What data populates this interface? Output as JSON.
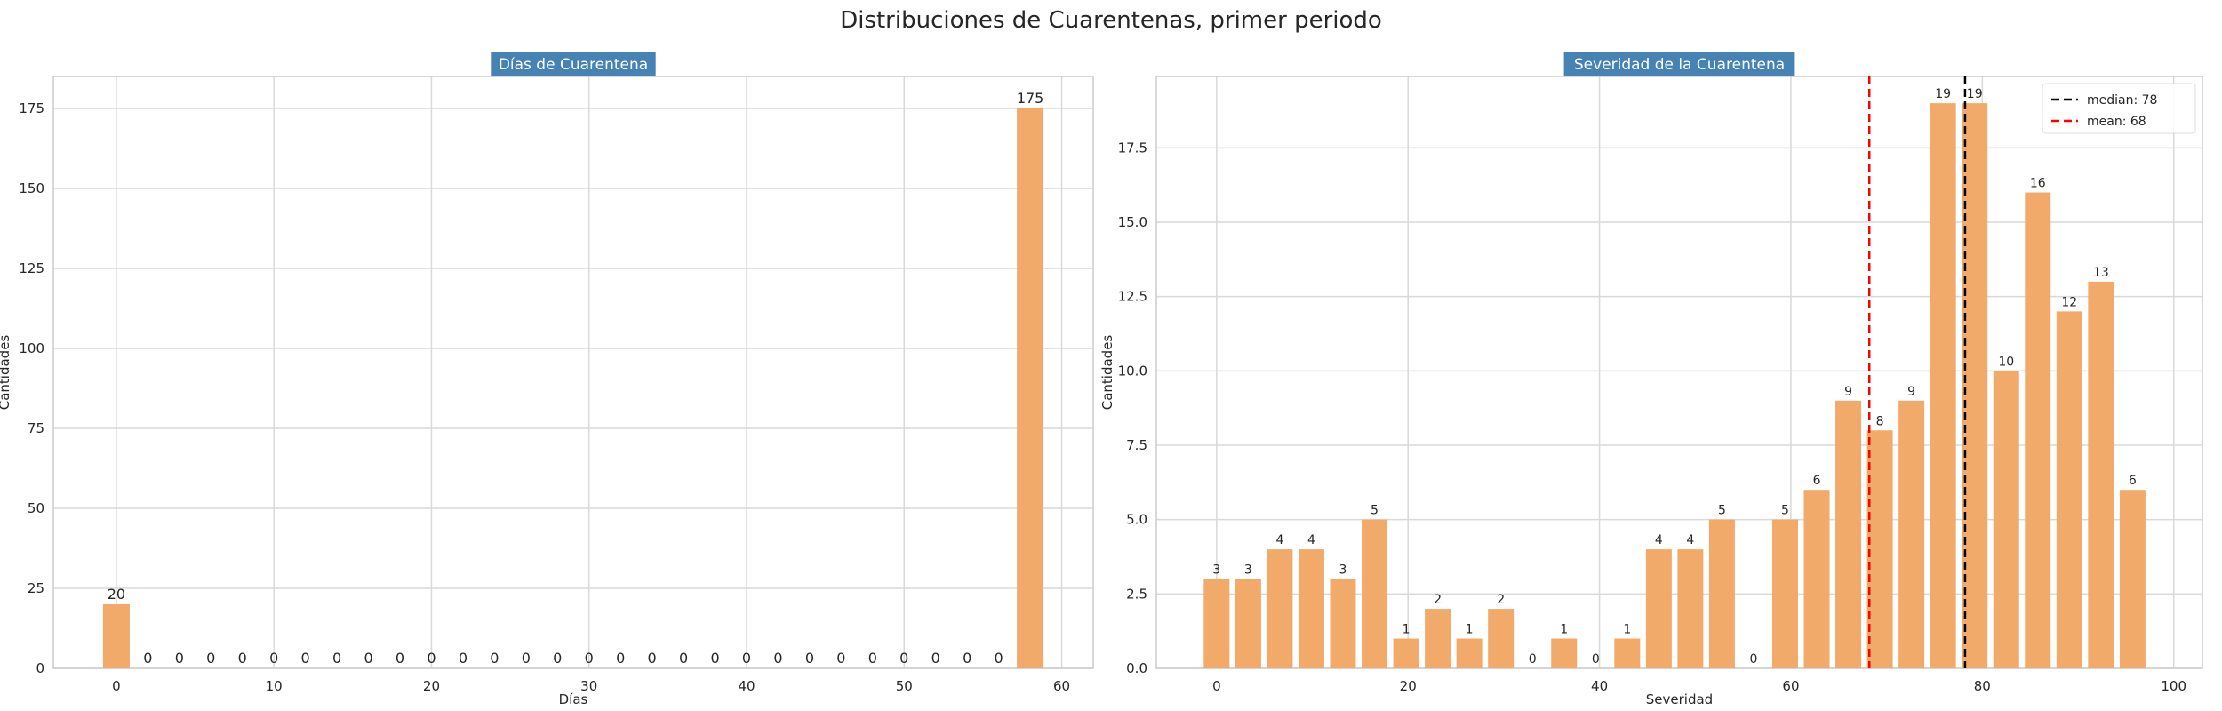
{
  "figure": {
    "title": "Distribuciones de Cuarentenas, primer periodo"
  },
  "colors": {
    "bar": "#f2aa6a",
    "title_box": "#4682b4",
    "grid": "#d9d9d9",
    "spine": "#cccccc",
    "median": "#000000",
    "mean": "#ff0000"
  },
  "chart_data": [
    {
      "type": "bar",
      "title": "Días de Cuarentena",
      "xlabel": "Días",
      "ylabel": "Cantidades",
      "xlim": [
        -4,
        62
      ],
      "ylim": [
        0,
        185
      ],
      "xticks": [
        0,
        10,
        20,
        30,
        40,
        50,
        60
      ],
      "yticks": [
        0,
        25,
        50,
        75,
        100,
        125,
        150,
        175
      ],
      "grid": true,
      "x": [
        0,
        2,
        4,
        6,
        8,
        10,
        12,
        14,
        16,
        18,
        20,
        22,
        24,
        26,
        28,
        30,
        32,
        34,
        36,
        38,
        40,
        42,
        44,
        46,
        48,
        50,
        52,
        54,
        56,
        58
      ],
      "values": [
        20,
        0,
        0,
        0,
        0,
        0,
        0,
        0,
        0,
        0,
        0,
        0,
        0,
        0,
        0,
        0,
        0,
        0,
        0,
        0,
        0,
        0,
        0,
        0,
        0,
        0,
        0,
        0,
        0,
        175
      ],
      "data_labels": [
        "20",
        "0",
        "0",
        "0",
        "0",
        "0",
        "0",
        "0",
        "0",
        "0",
        "0",
        "0",
        "0",
        "0",
        "0",
        "0",
        "0",
        "0",
        "0",
        "0",
        "0",
        "0",
        "0",
        "0",
        "0",
        "0",
        "0",
        "0",
        "0",
        "175"
      ]
    },
    {
      "type": "bar",
      "title": "Severidad de la Cuarentena",
      "xlabel": "Severidad",
      "ylabel": "Cantidades",
      "xlim": [
        -6.3,
        103
      ],
      "ylim": [
        0,
        19.9
      ],
      "xticks": [
        0,
        20,
        40,
        60,
        80,
        100
      ],
      "ytick_labels": [
        "0.0",
        "2.5",
        "5.0",
        "7.5",
        "10.0",
        "12.5",
        "15.0",
        "17.5"
      ],
      "grid": true,
      "x": [
        0,
        3.3,
        6.6,
        9.9,
        13.2,
        16.5,
        19.8,
        23.1,
        26.4,
        29.7,
        33,
        36.3,
        39.6,
        42.9,
        46.2,
        49.5,
        52.8,
        56.1,
        59.4,
        62.7,
        66,
        69.3,
        72.6,
        75.9,
        79.2,
        82.5,
        85.8,
        89.1,
        92.4,
        95.7
      ],
      "values": [
        3,
        3,
        4,
        4,
        3,
        5,
        1,
        2,
        1,
        2,
        0,
        1,
        0,
        1,
        4,
        4,
        5,
        0,
        5,
        6,
        9,
        8,
        9,
        19,
        19,
        10,
        16,
        12,
        13,
        6
      ],
      "data_labels": [
        "3",
        "3",
        "4",
        "4",
        "3",
        "5",
        "1",
        "2",
        "1",
        "2",
        "0",
        "1",
        "0",
        "1",
        "4",
        "4",
        "5",
        "0",
        "5",
        "6",
        "9",
        "8",
        "9",
        "19",
        "19",
        "10",
        "16",
        "12",
        "13",
        "6"
      ],
      "reference_lines": [
        {
          "label": "median: 78",
          "x": 78.2,
          "color": "#000000"
        },
        {
          "label": "mean: 68",
          "x": 68.2,
          "color": "#ff0000"
        }
      ],
      "legend_position": "top-right"
    }
  ]
}
